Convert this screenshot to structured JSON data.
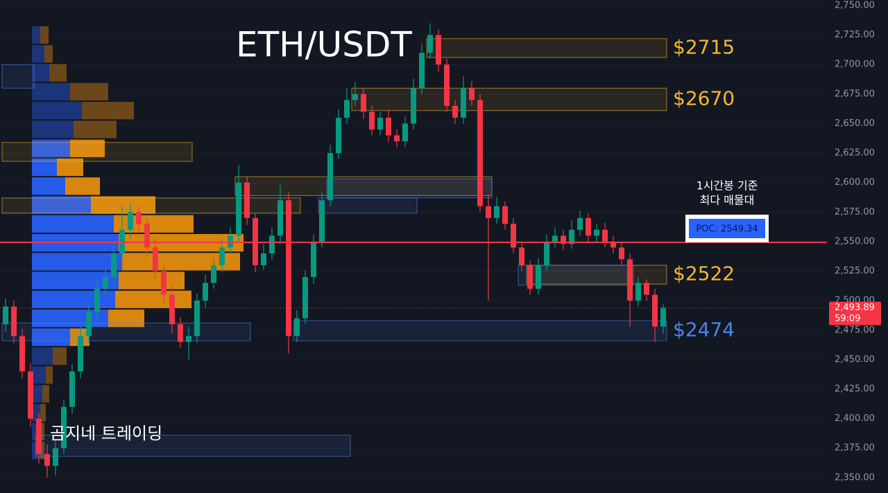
{
  "chart_data": {
    "type": "candlestick",
    "title": "ETH/USDT",
    "watermark": "곰지네 트레이딩",
    "ylim": [
      2337,
      2754.7
    ],
    "yticks": [
      {
        "value": 2350,
        "label": "2,350.00"
      },
      {
        "value": 2375,
        "label": "2,375.00"
      },
      {
        "value": 2400,
        "label": "2,400.00"
      },
      {
        "value": 2425,
        "label": "2,425.00"
      },
      {
        "value": 2450,
        "label": "2,450.00"
      },
      {
        "value": 2475,
        "label": "2,475.00"
      },
      {
        "value": 2500,
        "label": "2,500.00"
      },
      {
        "value": 2525,
        "label": "2,525.00"
      },
      {
        "value": 2550,
        "label": "2,550.00"
      },
      {
        "value": 2575,
        "label": "2,575.00"
      },
      {
        "value": 2600,
        "label": "2,600.00"
      },
      {
        "value": 2625,
        "label": "2,625.00"
      },
      {
        "value": 2650,
        "label": "2,650.00"
      },
      {
        "value": 2675,
        "label": "2,675.00"
      },
      {
        "value": 2700,
        "label": "2,700.00"
      },
      {
        "value": 2725,
        "label": "2,725.00"
      },
      {
        "value": 2750,
        "label": "2,750.00"
      }
    ],
    "grid": true,
    "up_color": "#089981",
    "down_color": "#f23645",
    "candles": {
      "open": [
        2480,
        2495,
        2470,
        2440,
        2400,
        2370,
        2360,
        2375,
        2410,
        2440,
        2470,
        2490,
        2510,
        2520,
        2540,
        2560,
        2575,
        2565,
        2545,
        2525,
        2505,
        2480,
        2465,
        2470,
        2500,
        2515,
        2530,
        2545,
        2555,
        2600,
        2570,
        2530,
        2540,
        2555,
        2585,
        2470,
        2485,
        2520,
        2550,
        2585,
        2625,
        2655,
        2670,
        2675,
        2660,
        2645,
        2655,
        2640,
        2635,
        2650,
        2680,
        2710,
        2725,
        2700,
        2665,
        2655,
        2680,
        2670,
        2580,
        2570,
        2580,
        2565,
        2545,
        2530,
        2510,
        2530,
        2550,
        2555,
        2548,
        2560,
        2570,
        2555,
        2560,
        2550,
        2545,
        2535,
        2500,
        2515,
        2505,
        2478
      ],
      "high": [
        2502,
        2500,
        2476,
        2447,
        2405,
        2378,
        2382,
        2416,
        2446,
        2478,
        2497,
        2518,
        2527,
        2548,
        2580,
        2582,
        2580,
        2570,
        2552,
        2530,
        2512,
        2486,
        2478,
        2506,
        2522,
        2536,
        2552,
        2562,
        2615,
        2605,
        2574,
        2548,
        2562,
        2598,
        2592,
        2492,
        2526,
        2556,
        2592,
        2632,
        2662,
        2680,
        2685,
        2680,
        2665,
        2660,
        2662,
        2645,
        2656,
        2688,
        2718,
        2735,
        2730,
        2705,
        2670,
        2690,
        2686,
        2675,
        2590,
        2588,
        2584,
        2570,
        2550,
        2534,
        2536,
        2556,
        2562,
        2560,
        2568,
        2576,
        2574,
        2565,
        2566,
        2555,
        2550,
        2540,
        2520,
        2518,
        2510,
        2497
      ],
      "low": [
        2474,
        2464,
        2434,
        2393,
        2362,
        2350,
        2352,
        2370,
        2404,
        2434,
        2464,
        2484,
        2504,
        2514,
        2534,
        2553,
        2559,
        2538,
        2519,
        2498,
        2472,
        2460,
        2450,
        2464,
        2494,
        2510,
        2524,
        2540,
        2550,
        2564,
        2524,
        2526,
        2535,
        2548,
        2455,
        2465,
        2480,
        2514,
        2545,
        2580,
        2620,
        2650,
        2665,
        2654,
        2640,
        2640,
        2634,
        2630,
        2630,
        2645,
        2675,
        2705,
        2694,
        2660,
        2650,
        2650,
        2665,
        2575,
        2500,
        2565,
        2560,
        2540,
        2525,
        2505,
        2505,
        2525,
        2545,
        2543,
        2544,
        2555,
        2550,
        2550,
        2545,
        2540,
        2530,
        2478,
        2495,
        2500,
        2465,
        2472
      ],
      "close": [
        2495,
        2470,
        2440,
        2400,
        2370,
        2360,
        2375,
        2410,
        2440,
        2470,
        2490,
        2510,
        2520,
        2540,
        2560,
        2575,
        2565,
        2545,
        2525,
        2505,
        2480,
        2465,
        2470,
        2500,
        2515,
        2530,
        2545,
        2555,
        2600,
        2570,
        2530,
        2540,
        2555,
        2585,
        2470,
        2485,
        2520,
        2550,
        2585,
        2625,
        2655,
        2670,
        2675,
        2660,
        2645,
        2655,
        2640,
        2635,
        2650,
        2680,
        2710,
        2725,
        2700,
        2665,
        2655,
        2680,
        2670,
        2580,
        2570,
        2580,
        2565,
        2545,
        2530,
        2510,
        2530,
        2550,
        2555,
        2548,
        2560,
        2570,
        2555,
        2560,
        2550,
        2545,
        2535,
        2500,
        2515,
        2505,
        2478,
        2494
      ]
    },
    "volume_profile": {
      "prices": [
        2725,
        2709,
        2693,
        2677,
        2661,
        2645,
        2629,
        2613,
        2597,
        2581,
        2565,
        2549,
        2533,
        2517,
        2501,
        2485,
        2469,
        2453,
        2437,
        2421,
        2405,
        2389,
        2373
      ],
      "buy": [
        12,
        18,
        25,
        55,
        72,
        60,
        55,
        36,
        48,
        85,
        118,
        125,
        130,
        125,
        120,
        110,
        55,
        30,
        20,
        15,
        12,
        10,
        12
      ],
      "sell": [
        12,
        12,
        25,
        55,
        75,
        62,
        50,
        38,
        50,
        93,
        115,
        180,
        170,
        95,
        110,
        52,
        28,
        20,
        10,
        10,
        8,
        8,
        6
      ],
      "buy_color": "#2962ff",
      "sell_color": "#f0920c",
      "value_area": [
        2465,
        2640
      ]
    },
    "zones": [
      {
        "low": 2706,
        "high": 2722,
        "start": 51,
        "end": 79,
        "color": "#f5b82e",
        "label": "$2715"
      },
      {
        "low": 2661,
        "high": 2680,
        "start": 42,
        "end": 79,
        "color": "#f5b82e",
        "label": "$2670"
      },
      {
        "low": 2514,
        "high": 2530,
        "start": 63,
        "end": 79,
        "color": "#f5b82e",
        "label": "$2522"
      },
      {
        "low": 2466,
        "high": 2483,
        "start": 35,
        "end": 79,
        "color": "#4a86e8",
        "label": "$2474"
      },
      {
        "low": 2589,
        "high": 2605,
        "start": 28,
        "end": 58,
        "color": "#f5b82e"
      },
      {
        "low": 2587,
        "high": 2603,
        "start": 39,
        "end": 58,
        "color": "#4a86e8"
      },
      {
        "low": 2574,
        "high": 2587,
        "start": 0,
        "end": 35,
        "color": "#f5b82e"
      },
      {
        "low": 2574,
        "high": 2587,
        "start": 38,
        "end": 49,
        "color": "#4a86e8"
      },
      {
        "low": 2513,
        "high": 2530,
        "start": 62,
        "end": 75,
        "color": "#4a86e8"
      },
      {
        "low": 2466,
        "high": 2481,
        "start": 0,
        "end": 29,
        "color": "#4a86e8"
      },
      {
        "low": 2368,
        "high": 2386,
        "start": 4,
        "end": 41,
        "color": "#4a86e8"
      },
      {
        "low": 2618,
        "high": 2634,
        "start": 0,
        "end": 22,
        "color": "#f5b82e"
      },
      {
        "low": 2680,
        "high": 2700,
        "start": 0,
        "end": 3,
        "color": "#4a86e8"
      }
    ],
    "poc": {
      "value": 2549.34,
      "label": "POC: 2549.34",
      "note": [
        "1시간봉 기준",
        "최다 매물대"
      ],
      "color": "#f23645"
    },
    "last_price": {
      "value": 2493.89,
      "label": "2,493.89",
      "countdown": "59:09"
    }
  }
}
